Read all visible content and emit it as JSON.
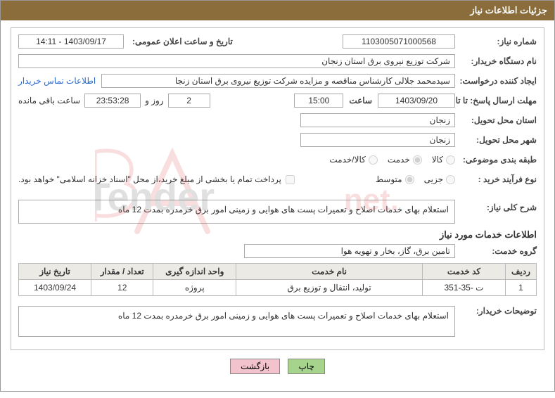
{
  "header": {
    "title": "جزئیات اطلاعات نیاز"
  },
  "colors": {
    "header_bg": "#8a6d3b",
    "header_fg": "#ffffff",
    "border": "#bbbbbb",
    "link": "#2a6bd1",
    "table_header_bg": "#eceae5",
    "btn_green": "#a7d48d",
    "btn_pink": "#f2c2cd",
    "watermark": "#d63a3a"
  },
  "fields": {
    "need_no_label": "شماره نیاز:",
    "need_no": "1103005071000568",
    "announce_label": "تاریخ و ساعت اعلان عمومی:",
    "announce": "1403/09/17 - 14:11",
    "buyer_org_label": "نام دستگاه خریدار:",
    "buyer_org": "شرکت توزیع نیروی برق استان زنجان",
    "requester_label": "ایجاد کننده درخواست:",
    "requester": "سیدمحمد جلالی کارشناس مناقصه و مزایده شرکت توزیع نیروی برق استان زنجا",
    "contact_link": "اطلاعات تماس خریدار",
    "deadline_label": "مهلت ارسال پاسخ: تا تاریخ:",
    "deadline_date": "1403/09/20",
    "time_label": "ساعت",
    "deadline_time": "15:00",
    "days_remaining": "2",
    "days_word": "روز و",
    "countdown": "23:53:28",
    "remaining_word": "ساعت باقی مانده",
    "deliver_province_label": "استان محل تحویل:",
    "deliver_province": "زنجان",
    "deliver_city_label": "شهر محل تحویل:",
    "deliver_city": "زنجان",
    "category_label": "طبقه بندی موضوعی:",
    "cat_goods": "کالا",
    "cat_service": "خدمت",
    "cat_both": "کالا/خدمت",
    "purchase_type_label": "نوع فرآیند خرید :",
    "pt_minor": "جزیی",
    "pt_medium": "متوسط",
    "payment_note": "پرداخت تمام یا بخشی از مبلغ خرید،از محل \"اسناد خزانه اسلامی\" خواهد بود.",
    "need_desc_label": "شرح کلی نیاز:",
    "need_desc": "استعلام بهای خدمات اصلاح و تعمیرات پست های هوایی و زمینی امور برق خرمدره بمدت 12 ماه",
    "services_info_title": "اطلاعات خدمات مورد نیاز",
    "service_group_label": "گروه خدمت:",
    "service_group": "تامین برق، گاز، بخار و تهویه هوا",
    "buyer_notes_label": "توضیحات خریدار:",
    "buyer_notes": "استعلام بهای خدمات اصلاح و تعمیرات پست های هوایی و زمینی امور برق خرمدره بمدت 12 ماه"
  },
  "table": {
    "columns": [
      "ردیف",
      "کد خدمت",
      "نام خدمت",
      "واحد اندازه گیری",
      "تعداد / مقدار",
      "تاریخ نیاز"
    ],
    "col_widths_pct": [
      6,
      16,
      36,
      16,
      12,
      14
    ],
    "rows": [
      [
        "1",
        "ت -35-351",
        "تولید، انتقال و توزیع برق",
        "پروژه",
        "12",
        "1403/09/24"
      ]
    ]
  },
  "buttons": {
    "print": "چاپ",
    "back": "بازگشت"
  },
  "watermark": {
    "text": "AriaTender.net"
  }
}
